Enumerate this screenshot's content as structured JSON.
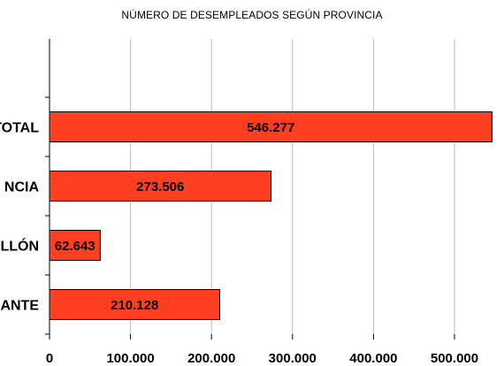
{
  "chart_data": {
    "type": "bar",
    "orientation": "horizontal",
    "title": "NÚMERO DE DESEMPLEADOS SEGÚN PROVINCIA",
    "categories": [
      "TOTAL",
      "VALENCIA",
      "CASTELLÓN",
      "ALICANTE"
    ],
    "values": [
      546277,
      273506,
      62643,
      210128
    ],
    "data_labels": [
      "546.277",
      "273.506",
      "62.643",
      "210.128"
    ],
    "category_labels_visible": [
      "TOTAL",
      "NCIA",
      "LLÓN",
      "ANTE"
    ],
    "xlim": [
      0,
      550000
    ],
    "xticks": [
      0,
      100000,
      200000,
      300000,
      400000,
      500000
    ],
    "xtick_labels": [
      "0",
      "100.000",
      "200.000",
      "300.000",
      "400.000",
      "500.000"
    ],
    "grid": "vertical",
    "bar_color": "#ff3f1f",
    "grid_color": "#bdbdbd",
    "legend": "none"
  }
}
